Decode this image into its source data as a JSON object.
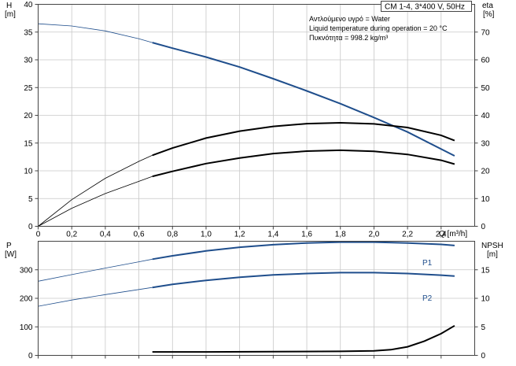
{
  "chart_data": [
    {
      "type": "line",
      "title": "CM 1-4, 3*400 V, 50Hz",
      "info_lines": [
        "Αντλούμενο υγρό = Water",
        "Liquid temperature during operation = 20 °C",
        "Πυκνότητα = 998.2 kg/m³"
      ],
      "xlabel": "Q [m³/h]",
      "xlim": [
        0,
        2.6
      ],
      "xticks": [
        "0",
        "0,2",
        "0,4",
        "0,6",
        "0,8",
        "1,0",
        "1,2",
        "1,4",
        "1,6",
        "1,8",
        "2,0",
        "2,2",
        "2,4"
      ],
      "xtick_values": [
        0,
        0.2,
        0.4,
        0.6,
        0.8,
        1.0,
        1.2,
        1.4,
        1.6,
        1.8,
        2.0,
        2.2,
        2.4
      ],
      "ylabel_left": [
        "H",
        "[m]"
      ],
      "ylim_left": [
        0,
        40
      ],
      "yticks_left": [
        0,
        5,
        10,
        15,
        20,
        25,
        30,
        35,
        40
      ],
      "ylabel_right": [
        "eta",
        "[%]"
      ],
      "ylim_right": [
        0,
        80
      ],
      "yticks_right": [
        0,
        10,
        20,
        30,
        40,
        50,
        60,
        70
      ],
      "grid": true,
      "series": [
        {
          "axis": "left",
          "color": "#1f4e8c",
          "x": [
            0,
            0.2,
            0.4,
            0.6,
            0.68,
            0.8,
            1.0,
            1.2,
            1.4,
            1.6,
            1.8,
            2.0,
            2.2,
            2.48
          ],
          "values": [
            36.5,
            36.1,
            35.2,
            33.8,
            33.1,
            32.1,
            30.5,
            28.7,
            26.6,
            24.4,
            22.1,
            19.6,
            17.0,
            12.7
          ]
        },
        {
          "axis": "right",
          "color": "#000000",
          "x": [
            0,
            0.2,
            0.4,
            0.6,
            0.68,
            0.8,
            1.0,
            1.2,
            1.4,
            1.6,
            1.8,
            2.0,
            2.2,
            2.4,
            2.48
          ],
          "values": [
            0,
            9.6,
            17.3,
            23.4,
            25.6,
            28.2,
            31.8,
            34.3,
            36.0,
            37.0,
            37.3,
            36.9,
            35.6,
            32.8,
            30.9
          ]
        },
        {
          "axis": "right",
          "color": "#000000",
          "x": [
            0,
            0.2,
            0.4,
            0.6,
            0.68,
            0.8,
            1.0,
            1.2,
            1.4,
            1.6,
            1.8,
            2.0,
            2.2,
            2.4,
            2.48
          ],
          "values": [
            0,
            6.5,
            11.8,
            16.2,
            18.0,
            19.8,
            22.6,
            24.6,
            26.2,
            27.1,
            27.4,
            27.0,
            25.9,
            23.8,
            22.4
          ]
        }
      ]
    },
    {
      "type": "line",
      "xlim": [
        0,
        2.6
      ],
      "ylabel_left": [
        "P",
        "[W]"
      ],
      "ylim_left": [
        0,
        400
      ],
      "yticks_left": [
        0,
        100,
        200,
        300
      ],
      "ylabel_right": [
        "NPSH",
        "[m]"
      ],
      "ylim_right": [
        0,
        20
      ],
      "yticks_right": [
        0,
        5,
        10,
        15
      ],
      "grid": true,
      "series": [
        {
          "name": "P1",
          "axis": "left",
          "color": "#1f4e8c",
          "x": [
            0,
            0.2,
            0.4,
            0.6,
            0.68,
            0.8,
            1.0,
            1.2,
            1.4,
            1.6,
            1.8,
            2.0,
            2.2,
            2.4,
            2.48
          ],
          "values": [
            260,
            283,
            306,
            328,
            337,
            349,
            366,
            379,
            388,
            394,
            397,
            397,
            394,
            389,
            385
          ]
        },
        {
          "name": "P2",
          "axis": "left",
          "color": "#1f4e8c",
          "x": [
            0,
            0.2,
            0.4,
            0.6,
            0.68,
            0.8,
            1.0,
            1.2,
            1.4,
            1.6,
            1.8,
            2.0,
            2.2,
            2.4,
            2.48
          ],
          "values": [
            172,
            194,
            213,
            231,
            238,
            249,
            263,
            274,
            282,
            287,
            290,
            290,
            287,
            281,
            278
          ]
        },
        {
          "axis": "right",
          "color": "#000000",
          "x": [
            0.68,
            1.0,
            1.4,
            1.8,
            2.0,
            2.1,
            2.2,
            2.3,
            2.4,
            2.48
          ],
          "values": [
            0.6,
            0.6,
            0.65,
            0.7,
            0.8,
            1.0,
            1.5,
            2.5,
            3.8,
            5.2
          ]
        }
      ]
    }
  ]
}
